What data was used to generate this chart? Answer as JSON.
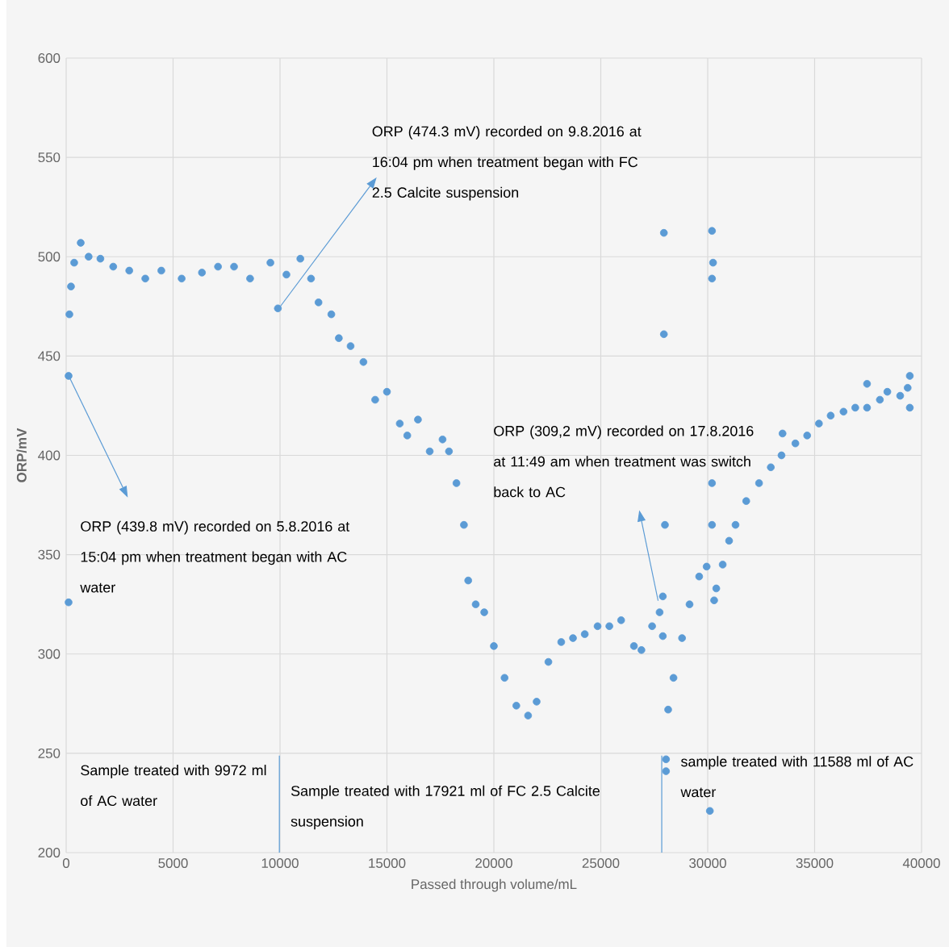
{
  "chart_data": {
    "type": "scatter",
    "xlabel": "Passed through volume/mL",
    "ylabel": "ORP/mV",
    "x": [
      113,
      113,
      150,
      225,
      375,
      680,
      1050,
      1600,
      2200,
      2950,
      3700,
      4450,
      5400,
      6350,
      7100,
      7850,
      8600,
      9550,
      9900,
      10300,
      10950,
      11450,
      11800,
      12400,
      12750,
      13300,
      13900,
      14450,
      15000,
      15600,
      15950,
      16450,
      17000,
      17600,
      17900,
      18250,
      18600,
      18800,
      19150,
      19550,
      20000,
      20500,
      21050,
      21600,
      22000,
      22550,
      23150,
      23700,
      24250,
      24850,
      25400,
      25950,
      26550,
      26900,
      27400,
      27750,
      27900,
      27900,
      27950,
      27950,
      28000,
      28050,
      28050,
      28150,
      28400,
      28800,
      29150,
      29600,
      29950,
      30100,
      30200,
      30200,
      30250,
      30200,
      30200,
      30300,
      30400,
      30700,
      31000,
      31300,
      31800,
      32400,
      32950,
      33450,
      33500,
      34100,
      34650,
      35200,
      35750,
      36350,
      36900,
      37450,
      37450,
      38050,
      38400,
      39000,
      39350,
      39450,
      39450
    ],
    "series": [
      {
        "color": "#5b9bd5",
        "values": [
          440,
          326,
          471,
          485,
          497,
          507,
          500,
          499,
          495,
          493,
          489,
          493,
          489,
          492,
          495,
          495,
          489,
          497,
          474,
          491,
          499,
          489,
          477,
          471,
          459,
          455,
          447,
          428,
          432,
          416,
          410,
          418,
          402,
          408,
          402,
          386,
          365,
          337,
          325,
          321,
          304,
          288,
          274,
          269,
          276,
          296,
          306,
          308,
          310,
          314,
          314,
          317,
          304,
          302,
          314,
          321,
          329,
          309,
          461,
          512,
          365,
          241,
          247,
          272,
          288,
          308,
          325,
          339,
          344,
          221,
          513,
          386,
          497,
          489,
          365,
          327,
          333,
          345,
          357,
          365,
          377,
          386,
          394,
          400,
          411,
          406,
          410,
          416,
          420,
          422,
          424,
          424,
          436,
          428,
          432,
          430,
          434,
          440,
          424
        ]
      }
    ],
    "xlim": [
      0,
      40000
    ],
    "ylim": [
      200,
      600
    ],
    "xticks": [
      0,
      5000,
      10000,
      15000,
      20000,
      25000,
      30000,
      35000,
      40000
    ],
    "yticks": [
      200,
      250,
      300,
      350,
      400,
      450,
      500,
      550,
      600
    ],
    "grid": true,
    "marker": "circle",
    "ref_lines": [
      {
        "axis": "x",
        "value": 9970,
        "color": "#5b9bd5"
      },
      {
        "axis": "x",
        "value": 27850,
        "color": "#5b9bd5"
      }
    ],
    "annotations": [
      "ORP (439.8 mV) recorded on 5.8.2016 at 15:04 pm when treatment began with AC water",
      "ORP (474.3 mV) recorded on 9.8.2016 at 16:04 pm when treatment began with FC 2.5 Calcite suspension",
      "ORP (309,2 mV) recorded on 17.8.2016 at 11:49 am when treatment was switch back to AC",
      "Sample treated with 9972 ml of AC water",
      "Sample treated with 17921 ml of FC 2.5 Calcite suspension",
      "sample treated with 11588 ml of AC water"
    ]
  }
}
